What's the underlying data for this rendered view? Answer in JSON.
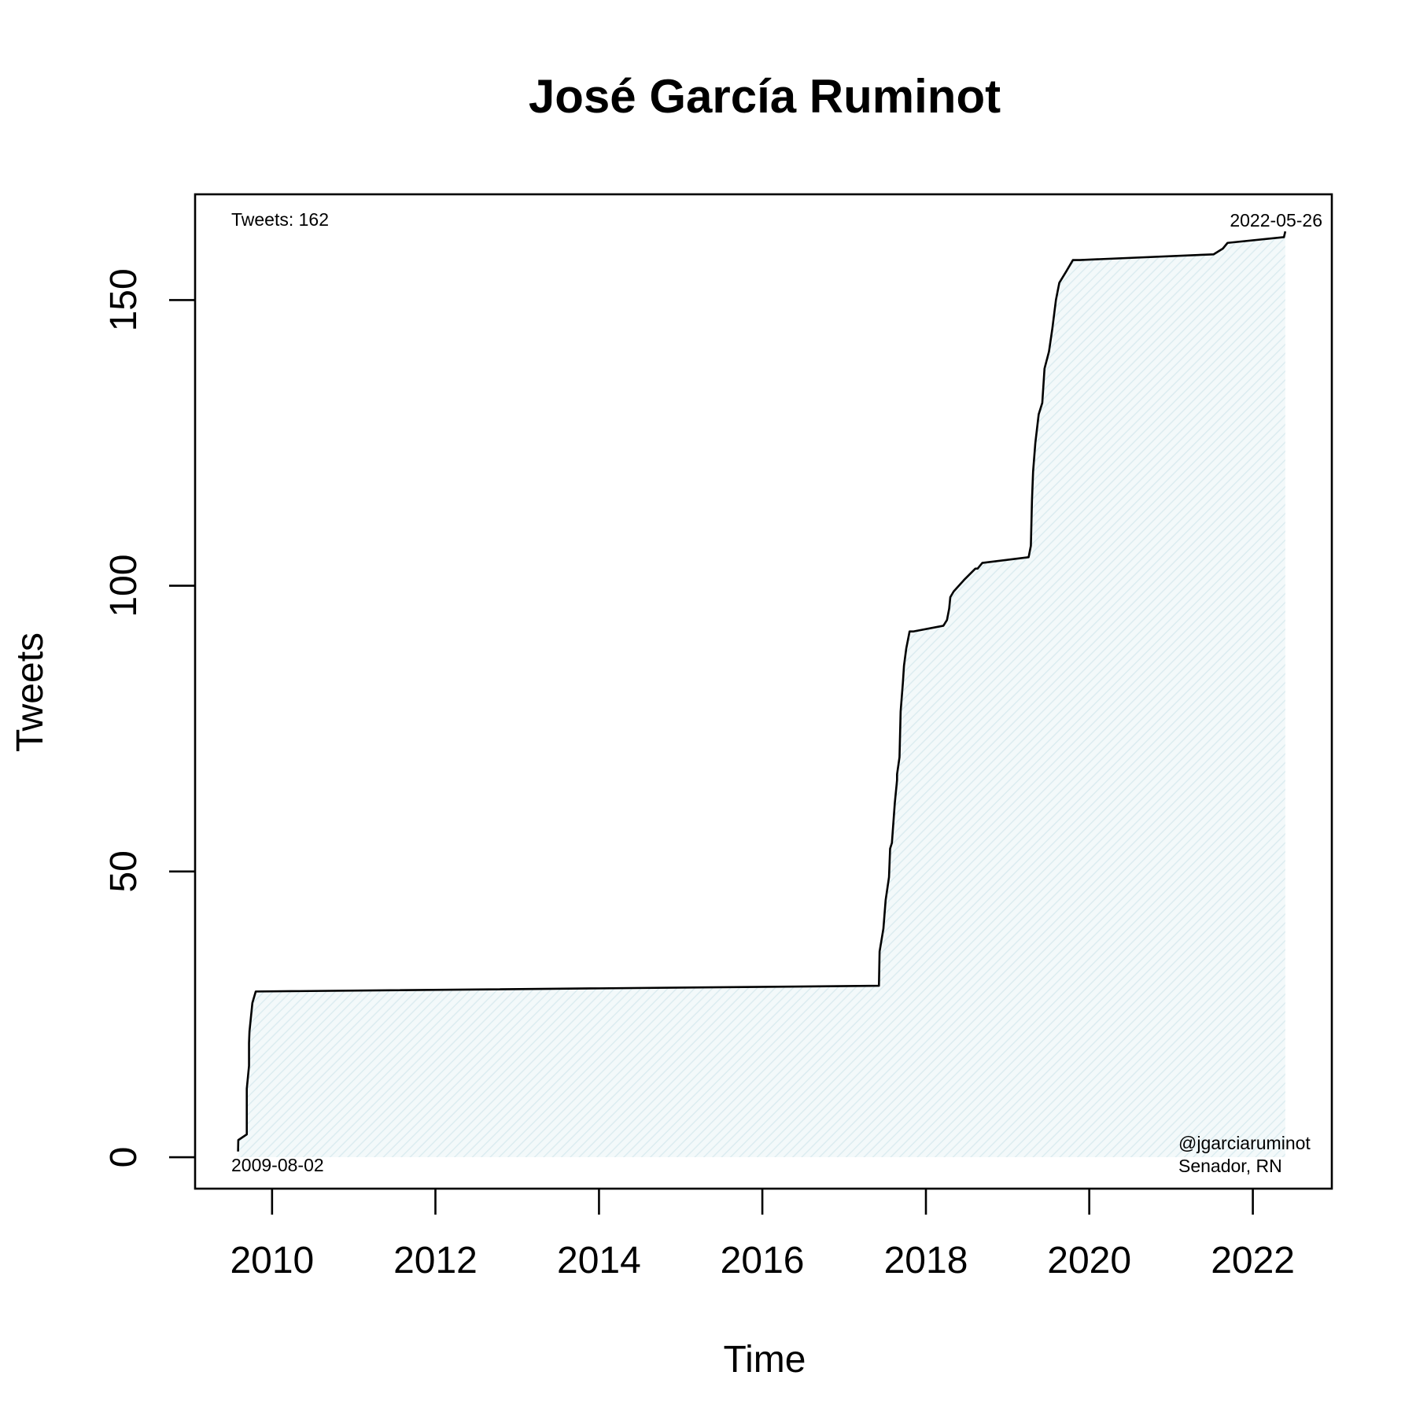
{
  "chart_data": {
    "type": "area",
    "title": "José García Ruminot",
    "xlabel": "Time",
    "ylabel": "Tweets",
    "xlim": [
      "2009-01-22",
      "2022-12-20"
    ],
    "ylim": [
      -5.5,
      168.5
    ],
    "x_ticks": [
      "2010",
      "2012",
      "2014",
      "2016",
      "2018",
      "2020",
      "2022"
    ],
    "y_ticks": [
      "0",
      "50",
      "100",
      "150"
    ],
    "grid": false,
    "legend": "none",
    "colors": {
      "line": "#000000",
      "fill": "#eaf4f6",
      "axis": "#000000"
    },
    "annotations": {
      "tweet_count": "Tweets: 162",
      "start_date": "2009-08-02",
      "end_date": "2022-05-26",
      "handle": "@jgarciaruminot",
      "role": "Senador, RN"
    },
    "series": [
      {
        "x": [
          "2009-08-02",
          "2009-08-03",
          "2009-09-10",
          "2009-09-10",
          "2009-09-20",
          "2009-09-20",
          "2009-09-22",
          "2009-10-05",
          "2009-10-20",
          "2017-06-05",
          "2017-06-08",
          "2017-06-25",
          "2017-07-05",
          "2017-07-20",
          "2017-07-25",
          "2017-08-02",
          "2017-08-15",
          "2017-08-25",
          "2017-08-25",
          "2017-09-05",
          "2017-09-10",
          "2017-09-20",
          "2017-09-25",
          "2017-10-05",
          "2017-10-20",
          "2017-11-05",
          "2018-03-20",
          "2018-04-05",
          "2018-04-15",
          "2018-04-20",
          "2018-05-05",
          "2018-06-20",
          "2018-08-10",
          "2018-08-20",
          "2018-09-10",
          "2019-04-05",
          "2019-04-15",
          "2019-04-20",
          "2019-04-25",
          "2019-05-05",
          "2019-05-20",
          "2019-06-05",
          "2019-06-15",
          "2019-07-05",
          "2019-07-20",
          "2019-08-05",
          "2019-08-20",
          "2019-09-20",
          "2019-10-20",
          "2019-11-20",
          "2021-07-10",
          "2021-08-20",
          "2021-09-10",
          "2022-05-20",
          "2022-05-26"
        ],
        "y": [
          1,
          3,
          4,
          12,
          16,
          20,
          22,
          27,
          29,
          30,
          36,
          40,
          45,
          49,
          54,
          55,
          62,
          66,
          67,
          70,
          78,
          83,
          86,
          89,
          92,
          92,
          93,
          94,
          96,
          98,
          99,
          101,
          103,
          103,
          104,
          105,
          107,
          115,
          120,
          125,
          130,
          132,
          138,
          141,
          145,
          150,
          153,
          155,
          157,
          157,
          158,
          159,
          160,
          161,
          162
        ]
      }
    ]
  }
}
